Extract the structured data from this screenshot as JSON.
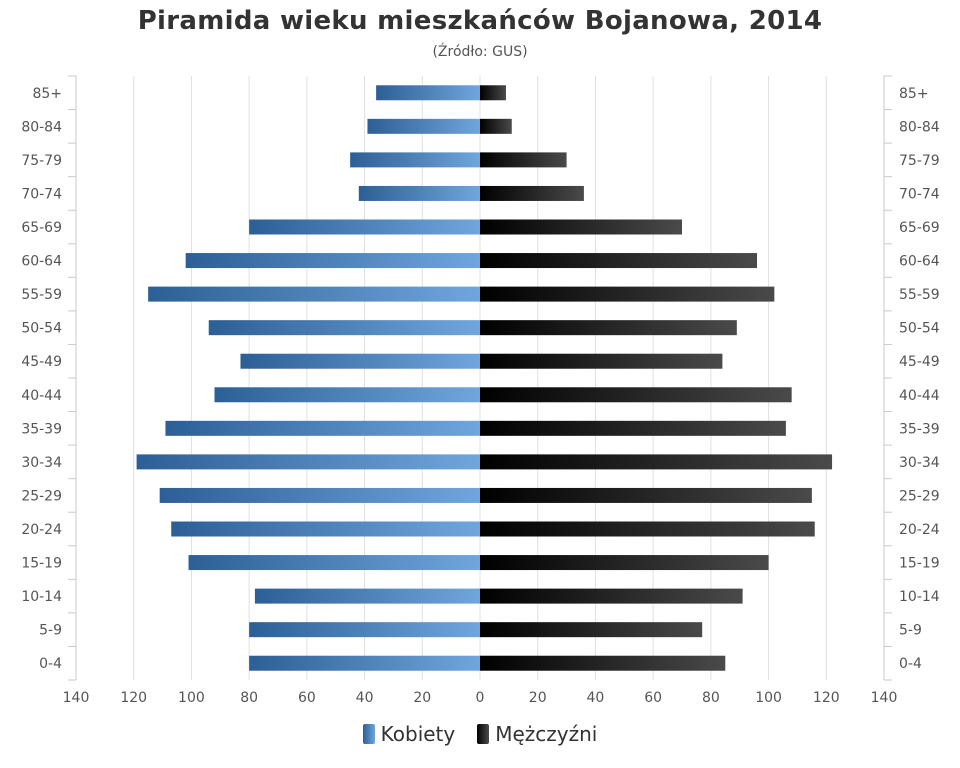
{
  "title": "Piramida wieku mieszkańców Bojanowa, 2014",
  "subtitle": "(Źródło: GUS)",
  "legend": {
    "women": "Kobiety",
    "men": "Mężczyźni"
  },
  "colors": {
    "women": "#3a74b3",
    "men": "#1a1a1a",
    "grid": "#e0e0e0",
    "axis": "#c9c9c9"
  },
  "chart_data": {
    "type": "bar",
    "orientation": "horizontal",
    "categories": [
      "85+",
      "80-84",
      "75-79",
      "70-74",
      "65-69",
      "60-64",
      "55-59",
      "50-54",
      "45-49",
      "40-44",
      "35-39",
      "30-34",
      "25-29",
      "20-24",
      "15-19",
      "10-14",
      "5-9",
      "0-4"
    ],
    "series": [
      {
        "name": "Kobiety",
        "values": [
          36,
          39,
          45,
          42,
          80,
          102,
          115,
          94,
          83,
          92,
          109,
          119,
          111,
          107,
          101,
          78,
          80,
          80
        ]
      },
      {
        "name": "Mężczyźni",
        "values": [
          9,
          11,
          30,
          36,
          70,
          96,
          102,
          89,
          84,
          108,
          106,
          122,
          115,
          116,
          100,
          91,
          77,
          85
        ]
      }
    ],
    "xlim": [
      -140,
      140
    ],
    "xticks": [
      "140",
      "120",
      "100",
      "80",
      "60",
      "40",
      "20",
      "0",
      "20",
      "40",
      "60",
      "80",
      "100",
      "120",
      "140"
    ],
    "grid": true,
    "legend_position": "bottom"
  }
}
